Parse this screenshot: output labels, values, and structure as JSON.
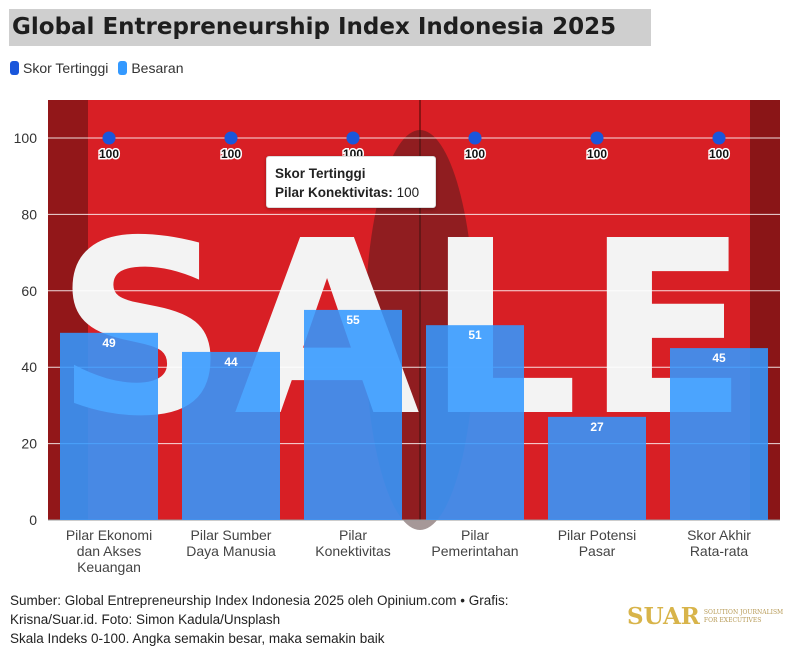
{
  "title": "Global Entrepreneurship Index Indonesia 2025",
  "legend": [
    {
      "label": "Skor Tertinggi",
      "color": "#1a56db"
    },
    {
      "label": "Besaran",
      "color": "#3399ff"
    }
  ],
  "tooltip": {
    "series": "Skor Tertinggi",
    "label": "Pilar Konektivitas:",
    "value": "100"
  },
  "footer": {
    "source": "Sumber: Global Entrepreneurship Index Indonesia 2025 oleh Opinium.com • Grafis:\nKrisna/Suar.id. Foto: Simon Kadula/Unsplash",
    "note": "Skala Indeks 0-100. Angka semakin besar, maka semakin baik"
  },
  "logo": {
    "text": "SUAR",
    "subtext": "SOLUTION JOURNALISM FOR EXECUTIVES"
  },
  "background_image": {
    "text": "SALE",
    "color": "#d81f25"
  },
  "chart_data": {
    "type": "bar",
    "categories": [
      "Pilar Ekonomi\ndan Akses\nKeuangan",
      "Pilar Sumber\nDaya Manusia",
      "Pilar\nKonektivitas",
      "Pilar\nPemerintahan",
      "Pilar Potensi\nPasar",
      "Skor Akhir\nRata-rata"
    ],
    "series": [
      {
        "name": "Skor Tertinggi",
        "type": "scatter",
        "values": [
          100,
          100,
          100,
          100,
          100,
          100
        ],
        "color": "#1a56db"
      },
      {
        "name": "Besaran",
        "type": "bar",
        "values": [
          49,
          44,
          55,
          51,
          27,
          45
        ],
        "color": "#3399ff"
      }
    ],
    "ylim": [
      0,
      100
    ],
    "yticks": [
      0,
      20,
      40,
      60,
      80,
      100
    ],
    "grid": true,
    "legend_position": "top-left"
  }
}
